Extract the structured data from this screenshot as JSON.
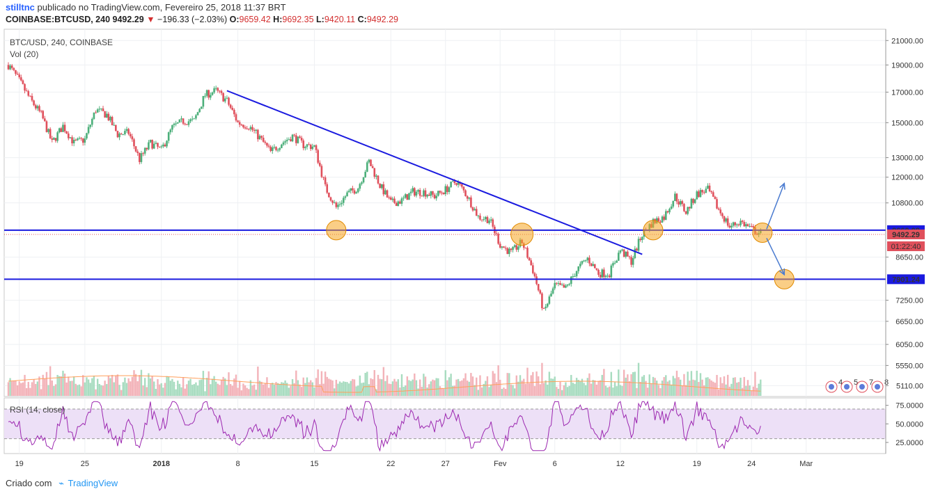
{
  "header": {
    "user": "stilltnc",
    "published": "publicado no TradingView.com, Fevereiro 25, 2018 11:37 BRT",
    "symbol": "COINBASE:BTCUSD, 240",
    "last": "9492.29",
    "change": "−196.33 (−2.03%)",
    "open_label": "O:",
    "open": "9659.42",
    "high_label": "H:",
    "high": "9692.35",
    "low_label": "L:",
    "low": "9420.11",
    "close_label": "C:",
    "close": "9492.29"
  },
  "footer": {
    "created": "Criado com",
    "brand": "TradingView"
  },
  "colors": {
    "up": "#4caf7a",
    "down": "#e0505c",
    "trend": "#1a1adf",
    "level": "#1a1adf",
    "highlight": "#f5a623",
    "rsi_line": "#9c27b0",
    "rsi_band": "#ede0f7"
  },
  "chart_data": {
    "type": "candlestick",
    "title": "BTC/USD, 240, COINBASE",
    "volume_label": "Vol (20)",
    "rsi_label": "RSI (14, close)",
    "x_ticks": [
      "19",
      "25",
      "2018",
      "8",
      "15",
      "22",
      "27",
      "Fev",
      "6",
      "12",
      "19",
      "24",
      "Mar"
    ],
    "y_ticks": [
      "21000.00",
      "19000.00",
      "17000.00",
      "15000.00",
      "13000.00",
      "12000.00",
      "10800.00",
      "9660.08",
      "9492.29",
      "8650.00",
      "7901.24",
      "7250.00",
      "6650.00",
      "6050.00",
      "5550.00",
      "5110.00"
    ],
    "y_scale": "log",
    "y_range": [
      5000,
      21500
    ],
    "rsi_ticks": [
      "75.0000",
      "50.0000",
      "25.0000"
    ],
    "rsi_range": [
      10,
      85
    ],
    "levels": [
      {
        "label": "9660.08",
        "value": 9660.08
      },
      {
        "label": "7901.24",
        "value": 7901.24
      }
    ],
    "last_price_label": "9492.29",
    "countdown": "01:22:40",
    "trendline": {
      "from": {
        "date": "2018-01-07",
        "price": 17100
      },
      "to": {
        "date": "2018-02-14",
        "price": 8750
      }
    },
    "highlighted_points": [
      {
        "date": "2018-01-17",
        "price": 9660
      },
      {
        "date": "2018-02-03",
        "price": 9500
      },
      {
        "date": "2018-02-15",
        "price": 9660
      },
      {
        "date": "2018-02-25",
        "price": 9560
      },
      {
        "date": "2018-02-27",
        "price": 7901
      }
    ],
    "projection_arrows": [
      {
        "from": {
          "date": "2018-02-25",
          "price": 9700
        },
        "to": {
          "date": "2018-02-27",
          "price": 11700
        }
      },
      {
        "from": {
          "date": "2018-02-25",
          "price": 9350
        },
        "to": {
          "date": "2018-02-27",
          "price": 8050
        }
      }
    ],
    "event_badges": [
      "4",
      "5",
      "7",
      "8"
    ],
    "price_path": [
      {
        "date": "2017-12-18",
        "price": 19000
      },
      {
        "date": "2017-12-19",
        "price": 17800
      },
      {
        "date": "2017-12-20",
        "price": 16500
      },
      {
        "date": "2017-12-21",
        "price": 15500
      },
      {
        "date": "2017-12-22",
        "price": 13800
      },
      {
        "date": "2017-12-23",
        "price": 14800
      },
      {
        "date": "2017-12-24",
        "price": 13800
      },
      {
        "date": "2017-12-25",
        "price": 14000
      },
      {
        "date": "2017-12-26",
        "price": 15800
      },
      {
        "date": "2017-12-27",
        "price": 15500
      },
      {
        "date": "2017-12-28",
        "price": 14300
      },
      {
        "date": "2017-12-29",
        "price": 14400
      },
      {
        "date": "2017-12-30",
        "price": 12900
      },
      {
        "date": "2017-12-31",
        "price": 13800
      },
      {
        "date": "2018-01-01",
        "price": 13400
      },
      {
        "date": "2018-01-02",
        "price": 14700
      },
      {
        "date": "2018-01-03",
        "price": 15100
      },
      {
        "date": "2018-01-04",
        "price": 15100
      },
      {
        "date": "2018-01-05",
        "price": 16800
      },
      {
        "date": "2018-01-06",
        "price": 17100
      },
      {
        "date": "2018-01-07",
        "price": 16400
      },
      {
        "date": "2018-01-08",
        "price": 15000
      },
      {
        "date": "2018-01-09",
        "price": 14800
      },
      {
        "date": "2018-01-10",
        "price": 14100
      },
      {
        "date": "2018-01-11",
        "price": 13300
      },
      {
        "date": "2018-01-12",
        "price": 13800
      },
      {
        "date": "2018-01-13",
        "price": 14200
      },
      {
        "date": "2018-01-14",
        "price": 13700
      },
      {
        "date": "2018-01-15",
        "price": 13600
      },
      {
        "date": "2018-01-16",
        "price": 11500
      },
      {
        "date": "2018-01-17",
        "price": 10600
      },
      {
        "date": "2018-01-18",
        "price": 11200
      },
      {
        "date": "2018-01-19",
        "price": 11500
      },
      {
        "date": "2018-01-20",
        "price": 12800
      },
      {
        "date": "2018-01-21",
        "price": 11600
      },
      {
        "date": "2018-01-22",
        "price": 10800
      },
      {
        "date": "2018-01-23",
        "price": 10900
      },
      {
        "date": "2018-01-24",
        "price": 11300
      },
      {
        "date": "2018-01-25",
        "price": 11300
      },
      {
        "date": "2018-01-26",
        "price": 11100
      },
      {
        "date": "2018-01-27",
        "price": 11400
      },
      {
        "date": "2018-01-28",
        "price": 11800
      },
      {
        "date": "2018-01-29",
        "price": 11100
      },
      {
        "date": "2018-01-30",
        "price": 10200
      },
      {
        "date": "2018-01-31",
        "price": 10100
      },
      {
        "date": "2018-02-01",
        "price": 9100
      },
      {
        "date": "2018-02-02",
        "price": 8800
      },
      {
        "date": "2018-02-03",
        "price": 9200
      },
      {
        "date": "2018-02-04",
        "price": 8200
      },
      {
        "date": "2018-02-05",
        "price": 6900
      },
      {
        "date": "2018-02-06",
        "price": 7700
      },
      {
        "date": "2018-02-07",
        "price": 7600
      },
      {
        "date": "2018-02-08",
        "price": 8200
      },
      {
        "date": "2018-02-09",
        "price": 8600
      },
      {
        "date": "2018-02-10",
        "price": 8100
      },
      {
        "date": "2018-02-11",
        "price": 8100
      },
      {
        "date": "2018-02-12",
        "price": 8900
      },
      {
        "date": "2018-02-13",
        "price": 8500
      },
      {
        "date": "2018-02-14",
        "price": 9500
      },
      {
        "date": "2018-02-15",
        "price": 10000
      },
      {
        "date": "2018-02-16",
        "price": 10200
      },
      {
        "date": "2018-02-17",
        "price": 11100
      },
      {
        "date": "2018-02-18",
        "price": 10400
      },
      {
        "date": "2018-02-19",
        "price": 11200
      },
      {
        "date": "2018-02-20",
        "price": 11400
      },
      {
        "date": "2018-02-21",
        "price": 10500
      },
      {
        "date": "2018-02-22",
        "price": 9800
      },
      {
        "date": "2018-02-23",
        "price": 10000
      },
      {
        "date": "2018-02-24",
        "price": 9700
      },
      {
        "date": "2018-02-25",
        "price": 9492
      }
    ]
  }
}
